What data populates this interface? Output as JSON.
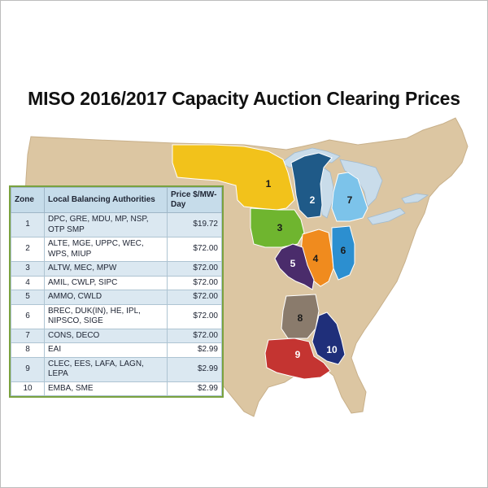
{
  "title": "MISO 2016/2017 Capacity Auction Clearing Prices",
  "colors": {
    "land": "#dcc6a2",
    "water": "#c9dcea",
    "zone_1": "#f2c21b",
    "zone_2": "#1f5a88",
    "zone_3": "#6fb52f",
    "zone_4": "#f08b1e",
    "zone_5": "#4a2c6b",
    "zone_6": "#2c8fd0",
    "zone_7": "#7cc3ea",
    "zone_8": "#8a7b6c",
    "zone_9": "#c43431",
    "zone_10": "#1f2f7a",
    "table_border": "#7aa23f",
    "table_header": "#c6dcea"
  },
  "map_labels": [
    "1",
    "2",
    "3",
    "4",
    "5",
    "6",
    "7",
    "8",
    "9",
    "10"
  ],
  "table": {
    "headers": {
      "zone": "Zone",
      "authorities": "Local Balancing Authorities",
      "price": "Price $/MW-Day"
    },
    "rows": [
      {
        "zone": "1",
        "authorities": "DPC, GRE, MDU, MP, NSP, OTP SMP",
        "price": "$19.72"
      },
      {
        "zone": "2",
        "authorities": "ALTE, MGE, UPPC, WEC, WPS, MIUP",
        "price": "$72.00"
      },
      {
        "zone": "3",
        "authorities": "ALTW, MEC, MPW",
        "price": "$72.00"
      },
      {
        "zone": "4",
        "authorities": "AMIL, CWLP, SIPC",
        "price": "$72.00"
      },
      {
        "zone": "5",
        "authorities": "AMMO, CWLD",
        "price": "$72.00"
      },
      {
        "zone": "6",
        "authorities": "BREC, DUK(IN), HE, IPL, NIPSCO, SIGE",
        "price": "$72.00"
      },
      {
        "zone": "7",
        "authorities": "CONS, DECO",
        "price": "$72.00"
      },
      {
        "zone": "8",
        "authorities": "EAI",
        "price": "$2.99"
      },
      {
        "zone": "9",
        "authorities": "CLEC, EES, LAFA, LAGN, LEPA",
        "price": "$2.99"
      },
      {
        "zone": "10",
        "authorities": "EMBA, SME",
        "price": "$2.99"
      }
    ]
  }
}
